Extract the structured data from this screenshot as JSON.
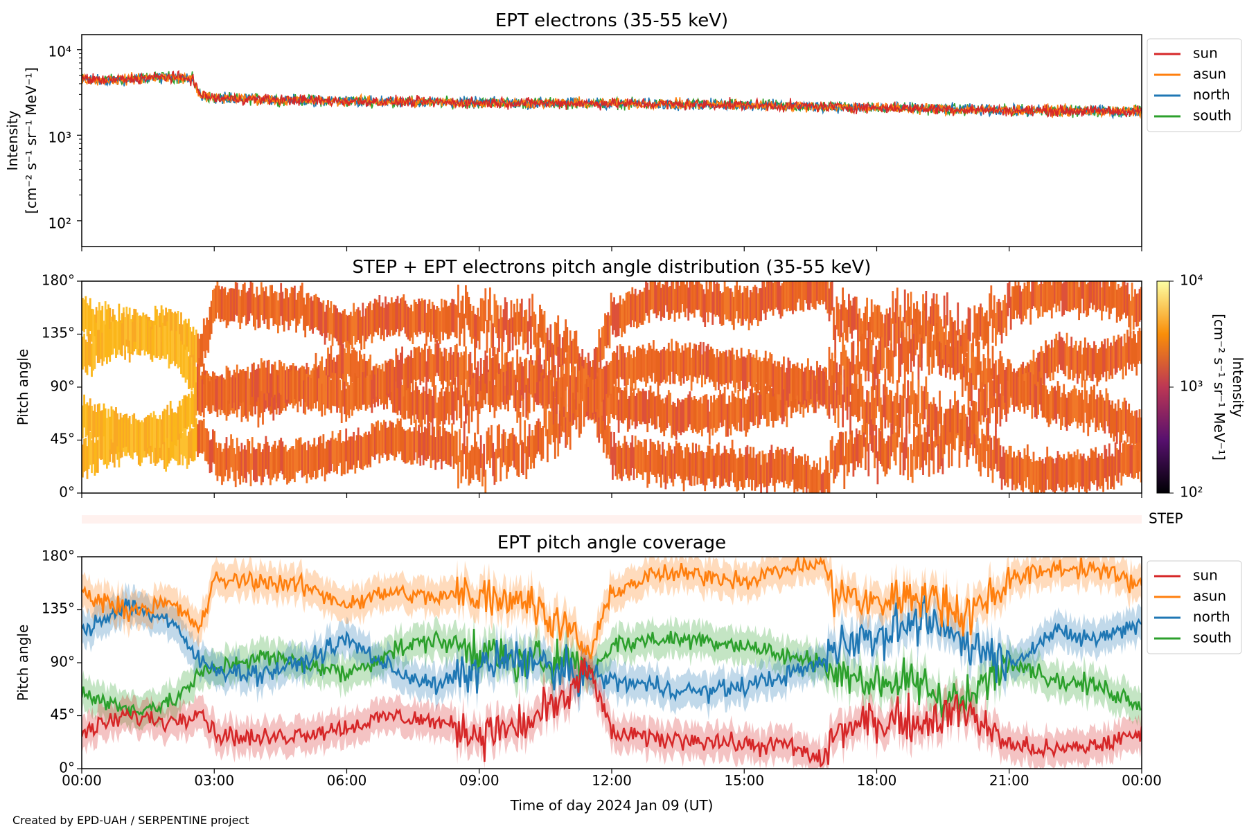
{
  "chart_data": [
    {
      "type": "line",
      "title": "EPT electrons (35-55 keV)",
      "ylabel": "Intensity",
      "ylabel_units": "[cm⁻² s⁻¹ sr⁻¹ MeV⁻¹]",
      "yscale": "log",
      "ylim": [
        50,
        15000
      ],
      "yticks": [
        "10²",
        "10³",
        "10⁴"
      ],
      "xlim": [
        "2024-01-09 00:00",
        "2024-01-10 00:00"
      ],
      "legend_position": "outside-right",
      "series": [
        {
          "name": "sun",
          "color": "#d62728"
        },
        {
          "name": "asun",
          "color": "#ff7f0e"
        },
        {
          "name": "north",
          "color": "#1f77b4"
        },
        {
          "name": "south",
          "color": "#2ca02c"
        }
      ],
      "trend": {
        "x": [
          "00:00",
          "00:30",
          "01:00",
          "01:30",
          "02:00",
          "02:30",
          "02:40",
          "03:00",
          "06:00",
          "09:00",
          "12:00",
          "15:00",
          "18:00",
          "21:00",
          "24:00"
        ],
        "y": [
          4600,
          4400,
          4500,
          4700,
          4800,
          4600,
          3000,
          2700,
          2500,
          2400,
          2350,
          2250,
          2100,
          1950,
          1900
        ]
      }
    },
    {
      "type": "heatmap",
      "title": "STEP + EPT electrons pitch angle distribution (35-55 keV)",
      "ylabel": "Pitch angle",
      "yticks": [
        "0°",
        "45°",
        "90°",
        "135°",
        "180°"
      ],
      "ylim": [
        0,
        180
      ],
      "colorbar": {
        "label": "Intensity",
        "units": "[cm⁻² s⁻¹ sr⁻¹ MeV⁻¹]",
        "scale": "log",
        "range": [
          100,
          10000
        ],
        "ticks": [
          "10²",
          "10³",
          "10⁴"
        ]
      },
      "step_label": "STEP"
    },
    {
      "type": "line",
      "title": "EPT pitch angle coverage",
      "ylabel": "Pitch angle",
      "xlabel": "Time of day 2024 Jan 09 (UT)",
      "ylim": [
        0,
        180
      ],
      "yticks": [
        "0°",
        "45°",
        "90°",
        "135°",
        "180°"
      ],
      "xticks": [
        "00:00",
        "03:00",
        "06:00",
        "09:00",
        "12:00",
        "15:00",
        "18:00",
        "21:00",
        "00:00"
      ],
      "legend_position": "outside-right",
      "x_hours": [
        0,
        1,
        2,
        2.7,
        3,
        4,
        5,
        6,
        7,
        8,
        9,
        10,
        11,
        11.5,
        12,
        13,
        14,
        15,
        16,
        16.8,
        17,
        18,
        19,
        20,
        21,
        22,
        23,
        24
      ],
      "series": [
        {
          "name": "sun",
          "color": "#d62728",
          "values": [
            30,
            45,
            40,
            50,
            30,
            25,
            30,
            35,
            45,
            40,
            30,
            35,
            60,
            85,
            30,
            25,
            25,
            20,
            20,
            5,
            30,
            40,
            40,
            50,
            20,
            15,
            20,
            30
          ]
        },
        {
          "name": "asun",
          "color": "#ff7f0e",
          "values": [
            150,
            135,
            140,
            120,
            160,
            160,
            155,
            140,
            150,
            145,
            150,
            145,
            120,
            95,
            150,
            165,
            165,
            160,
            170,
            175,
            150,
            140,
            150,
            130,
            160,
            170,
            170,
            155
          ]
        },
        {
          "name": "north",
          "color": "#1f77b4",
          "values": [
            115,
            140,
            125,
            90,
            85,
            80,
            90,
            110,
            85,
            70,
            85,
            95,
            80,
            80,
            75,
            70,
            65,
            70,
            80,
            90,
            105,
            115,
            125,
            110,
            90,
            115,
            110,
            125
          ]
        },
        {
          "name": "south",
          "color": "#2ca02c",
          "values": [
            65,
            50,
            55,
            80,
            85,
            95,
            90,
            80,
            100,
            110,
            100,
            90,
            95,
            80,
            105,
            110,
            110,
            105,
            95,
            90,
            80,
            75,
            70,
            55,
            95,
            75,
            70,
            55
          ]
        }
      ]
    }
  ],
  "footer": "Created by EPD-UAH / SERPENTINE project"
}
